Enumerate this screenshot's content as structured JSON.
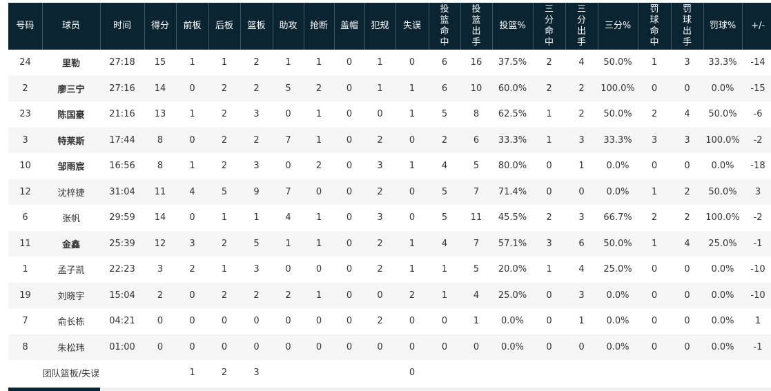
{
  "headers": [
    "号码",
    "球员",
    "时间",
    "得分",
    "前板",
    "后板",
    "篮板",
    "助攻",
    "抢断",
    "盖帽",
    "犯规",
    "失误",
    "投\n篮\n命\n中",
    "投\n篮\n出\n手",
    "投篮%",
    "三\n分\n命\n中",
    "三\n分\n出\n手",
    "三分%",
    "罚\n球\n命\n中",
    "罚\n球\n出\n手",
    "罚球%",
    "+/-"
  ],
  "players": [
    {
      "starter": true,
      "cells": [
        "24",
        "里勒",
        "27:18",
        "15",
        "1",
        "1",
        "2",
        "1",
        "1",
        "0",
        "1",
        "0",
        "6",
        "16",
        "37.5%",
        "2",
        "4",
        "50.0%",
        "1",
        "3",
        "33.3%",
        "-14"
      ]
    },
    {
      "starter": true,
      "cells": [
        "2",
        "廖三宁",
        "27:16",
        "14",
        "0",
        "2",
        "2",
        "5",
        "2",
        "0",
        "1",
        "1",
        "6",
        "10",
        "60.0%",
        "2",
        "2",
        "100.0%",
        "0",
        "0",
        "0.0%",
        "-15"
      ]
    },
    {
      "starter": true,
      "cells": [
        "23",
        "陈国豪",
        "21:16",
        "13",
        "1",
        "2",
        "3",
        "0",
        "1",
        "0",
        "0",
        "1",
        "5",
        "8",
        "62.5%",
        "1",
        "2",
        "50.0%",
        "2",
        "4",
        "50.0%",
        "-6"
      ]
    },
    {
      "starter": true,
      "cells": [
        "3",
        "特莱斯",
        "17:44",
        "8",
        "0",
        "2",
        "2",
        "7",
        "1",
        "0",
        "2",
        "0",
        "2",
        "6",
        "33.3%",
        "1",
        "3",
        "33.3%",
        "3",
        "3",
        "100.0%",
        "-2"
      ]
    },
    {
      "starter": true,
      "cells": [
        "10",
        "邹雨宸",
        "16:56",
        "8",
        "1",
        "2",
        "3",
        "0",
        "2",
        "0",
        "3",
        "1",
        "4",
        "5",
        "80.0%",
        "0",
        "1",
        "0.0%",
        "0",
        "0",
        "0.0%",
        "-18"
      ]
    },
    {
      "starter": false,
      "cells": [
        "12",
        "沈梓捷",
        "31:04",
        "11",
        "4",
        "5",
        "9",
        "7",
        "0",
        "0",
        "2",
        "0",
        "5",
        "7",
        "71.4%",
        "0",
        "0",
        "0.0%",
        "1",
        "2",
        "50.0%",
        "3"
      ]
    },
    {
      "starter": false,
      "cells": [
        "6",
        "张帆",
        "29:59",
        "14",
        "0",
        "1",
        "1",
        "4",
        "1",
        "0",
        "3",
        "0",
        "5",
        "11",
        "45.5%",
        "2",
        "3",
        "66.7%",
        "2",
        "2",
        "100.0%",
        "-2"
      ]
    },
    {
      "starter": true,
      "cells": [
        "11",
        "金鑫",
        "25:39",
        "12",
        "3",
        "2",
        "5",
        "1",
        "1",
        "0",
        "2",
        "1",
        "4",
        "7",
        "57.1%",
        "3",
        "6",
        "50.0%",
        "1",
        "4",
        "25.0%",
        "-1"
      ]
    },
    {
      "starter": false,
      "cells": [
        "1",
        "孟子凯",
        "22:23",
        "3",
        "2",
        "1",
        "3",
        "0",
        "0",
        "0",
        "2",
        "1",
        "1",
        "5",
        "20.0%",
        "1",
        "4",
        "25.0%",
        "0",
        "0",
        "0.0%",
        "-10"
      ]
    },
    {
      "starter": false,
      "cells": [
        "19",
        "刘晓宇",
        "15:04",
        "2",
        "0",
        "2",
        "2",
        "2",
        "1",
        "0",
        "0",
        "2",
        "1",
        "4",
        "25.0%",
        "0",
        "3",
        "0.0%",
        "0",
        "0",
        "0.0%",
        "-10"
      ]
    },
    {
      "starter": false,
      "cells": [
        "7",
        "俞长栋",
        "04:21",
        "0",
        "0",
        "0",
        "0",
        "0",
        "0",
        "0",
        "2",
        "0",
        "0",
        "1",
        "0.0%",
        "0",
        "1",
        "0.0%",
        "0",
        "0",
        "0.0%",
        "1"
      ]
    },
    {
      "starter": false,
      "cells": [
        "8",
        "朱松玮",
        "01:00",
        "0",
        "0",
        "0",
        "0",
        "0",
        "0",
        "0",
        "0",
        "0",
        "0",
        "0",
        "0.0%",
        "0",
        "0",
        "0.0%",
        "0",
        "0",
        "0.0%",
        "-1"
      ]
    }
  ],
  "team_row": {
    "label": "团队篮板/失误",
    "offensive_rebounds": "1",
    "defensive_rebounds": "2",
    "rebounds": "3",
    "turnovers": "0"
  },
  "colors": {
    "header_bg": "#0b2431",
    "header_text": "#ffffff",
    "stripe": "#f5f5f5"
  }
}
